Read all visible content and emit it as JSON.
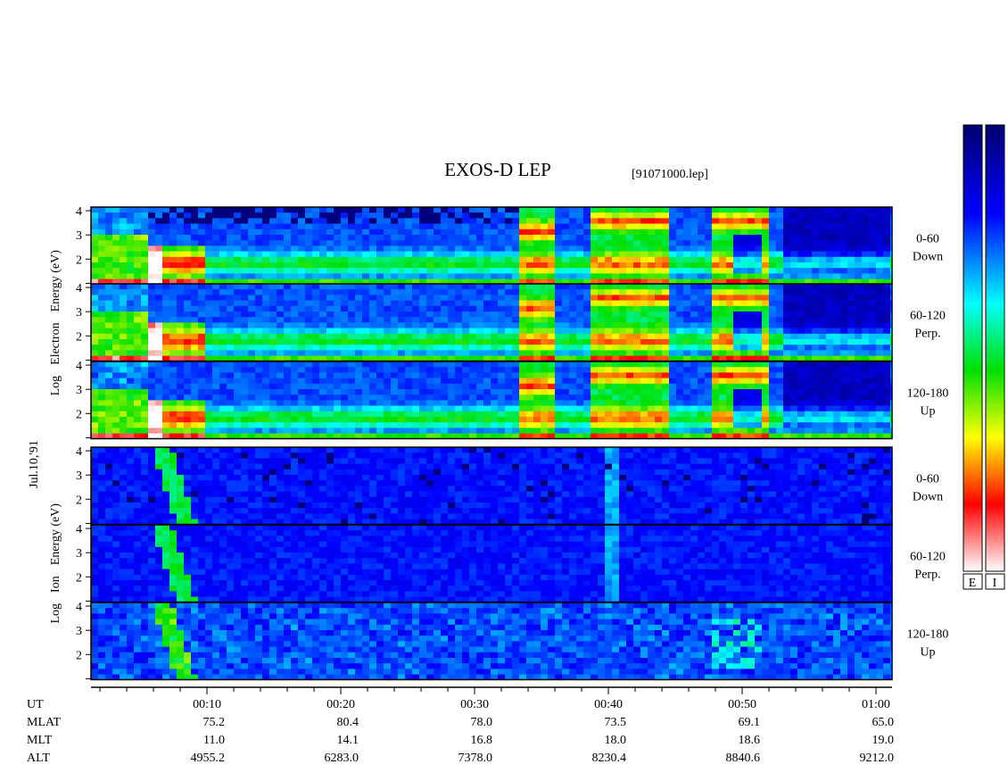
{
  "header": {
    "title": "EXOS-D LEP",
    "file": "[91071000.lep]"
  },
  "date": "Jul.10,'91",
  "energy_axis": {
    "ylim": [
      0.96,
      4.15
    ],
    "yticks": [
      2,
      3,
      4
    ],
    "minor_yticks": [
      1
    ]
  },
  "electron": {
    "label_words": [
      "Log",
      "Electron",
      "Energy (eV)"
    ],
    "panels": [
      {
        "angle": "0-60",
        "dir": "Down"
      },
      {
        "angle": "60-120",
        "dir": "Perp."
      },
      {
        "angle": "120-180",
        "dir": "Up"
      }
    ]
  },
  "ion": {
    "label_words": [
      "Log",
      "Ion",
      "Energy (eV)"
    ],
    "panels": [
      {
        "angle": "0-60",
        "dir": "Down"
      },
      {
        "angle": "60-120",
        "dir": "Perp."
      },
      {
        "angle": "120-180",
        "dir": "Up"
      }
    ]
  },
  "time_axis": {
    "xlim": [
      1.33,
      61.2
    ],
    "xticks": [
      {
        "value": 10,
        "label": "00:10"
      },
      {
        "value": 20,
        "label": "00:20"
      },
      {
        "value": 30,
        "label": "00:30"
      },
      {
        "value": 40,
        "label": "00:40"
      },
      {
        "value": 50,
        "label": "00:50"
      },
      {
        "value": 60,
        "label": "01:00"
      }
    ],
    "minor_xticks": [
      2,
      4,
      6,
      8,
      12,
      14,
      16,
      18,
      22,
      24,
      26,
      28,
      32,
      34,
      36,
      38,
      42,
      44,
      46,
      48,
      52,
      54,
      56,
      58
    ]
  },
  "rows": [
    {
      "label": "UT"
    },
    {
      "label": "MLAT",
      "values": [
        "75.2",
        "80.4",
        "78.0",
        "73.5",
        "69.1",
        "65.0"
      ]
    },
    {
      "label": "MLT",
      "values": [
        "11.0",
        "14.1",
        "16.8",
        "18.0",
        "18.6",
        "19.0"
      ]
    },
    {
      "label": "ALT",
      "values": [
        "4955.2",
        "6283.0",
        "7378.0",
        "8230.4",
        "8840.6",
        "9212.0"
      ]
    }
  ],
  "colorbars": [
    {
      "label": "E"
    },
    {
      "label": "I"
    }
  ]
}
